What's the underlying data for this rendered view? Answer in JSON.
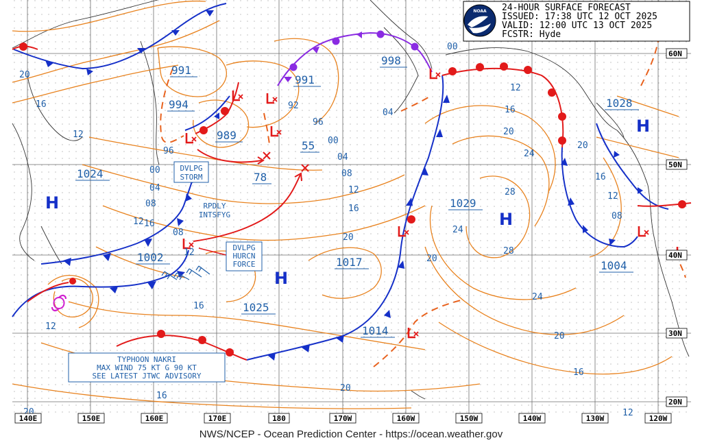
{
  "header": {
    "title": "24-HOUR SURFACE FORECAST",
    "issued": "ISSUED: 17:38 UTC 12 OCT 2025",
    "valid": "VALID:  12:00 UTC 13 OCT 2025",
    "forecaster": "FCSTR:  Hyde",
    "logo_text": "NOAA"
  },
  "credit": "NWS/NCEP - Ocean Prediction Center - https://ocean.weather.gov",
  "colors": {
    "isobar": "#e8821e",
    "cold_front": "#1530c8",
    "warm_front": "#e21a1a",
    "occluded_front": "#8a2be2",
    "low_symbol": "#e21a1a",
    "high_symbol": "#1530c8",
    "label_text": "#1f5fa8"
  },
  "lon_labels": [
    "140E",
    "150E",
    "160E",
    "170E",
    "180",
    "170W",
    "160W",
    "150W",
    "140W",
    "130W",
    "120W"
  ],
  "lat_labels": [
    "60N",
    "50N",
    "40N",
    "30N",
    "20N"
  ],
  "pressure_labels": [
    "991",
    "994",
    "989",
    "991",
    "998",
    "1028",
    "1024",
    "1002",
    "1025",
    "1017",
    "1029",
    "1004",
    "1014",
    "78",
    "55"
  ],
  "isobar_labels": [
    "20",
    "16",
    "12",
    "96",
    "00",
    "04",
    "08",
    "12",
    "92",
    "96",
    "00",
    "04",
    "08",
    "12",
    "16",
    "08",
    "12",
    "20",
    "16",
    "20",
    "24",
    "28",
    "28",
    "24",
    "20",
    "20",
    "24",
    "20",
    "16",
    "16",
    "12",
    "08",
    "12",
    "16",
    "12",
    "00",
    "04",
    "12",
    "16",
    "20",
    "20",
    "16"
  ],
  "highs": [
    "H",
    "H",
    "H",
    "H"
  ],
  "low_marker": "L",
  "annotations": {
    "dvlpg_storm": [
      "DVLPG",
      "STORM"
    ],
    "rpdly_intsfyg": [
      "RPDLY",
      "INTSFYG"
    ],
    "dvlpg_hurcn": [
      "DVLPG",
      "HURCN",
      "FORCE"
    ],
    "typhoon": [
      "TYPHOON NAKRI",
      "MAX WIND 75 KT G 90 KT",
      "SEE LATEST JTWC ADVISORY"
    ]
  },
  "typhoon_symbol": "tropical-cyclone"
}
